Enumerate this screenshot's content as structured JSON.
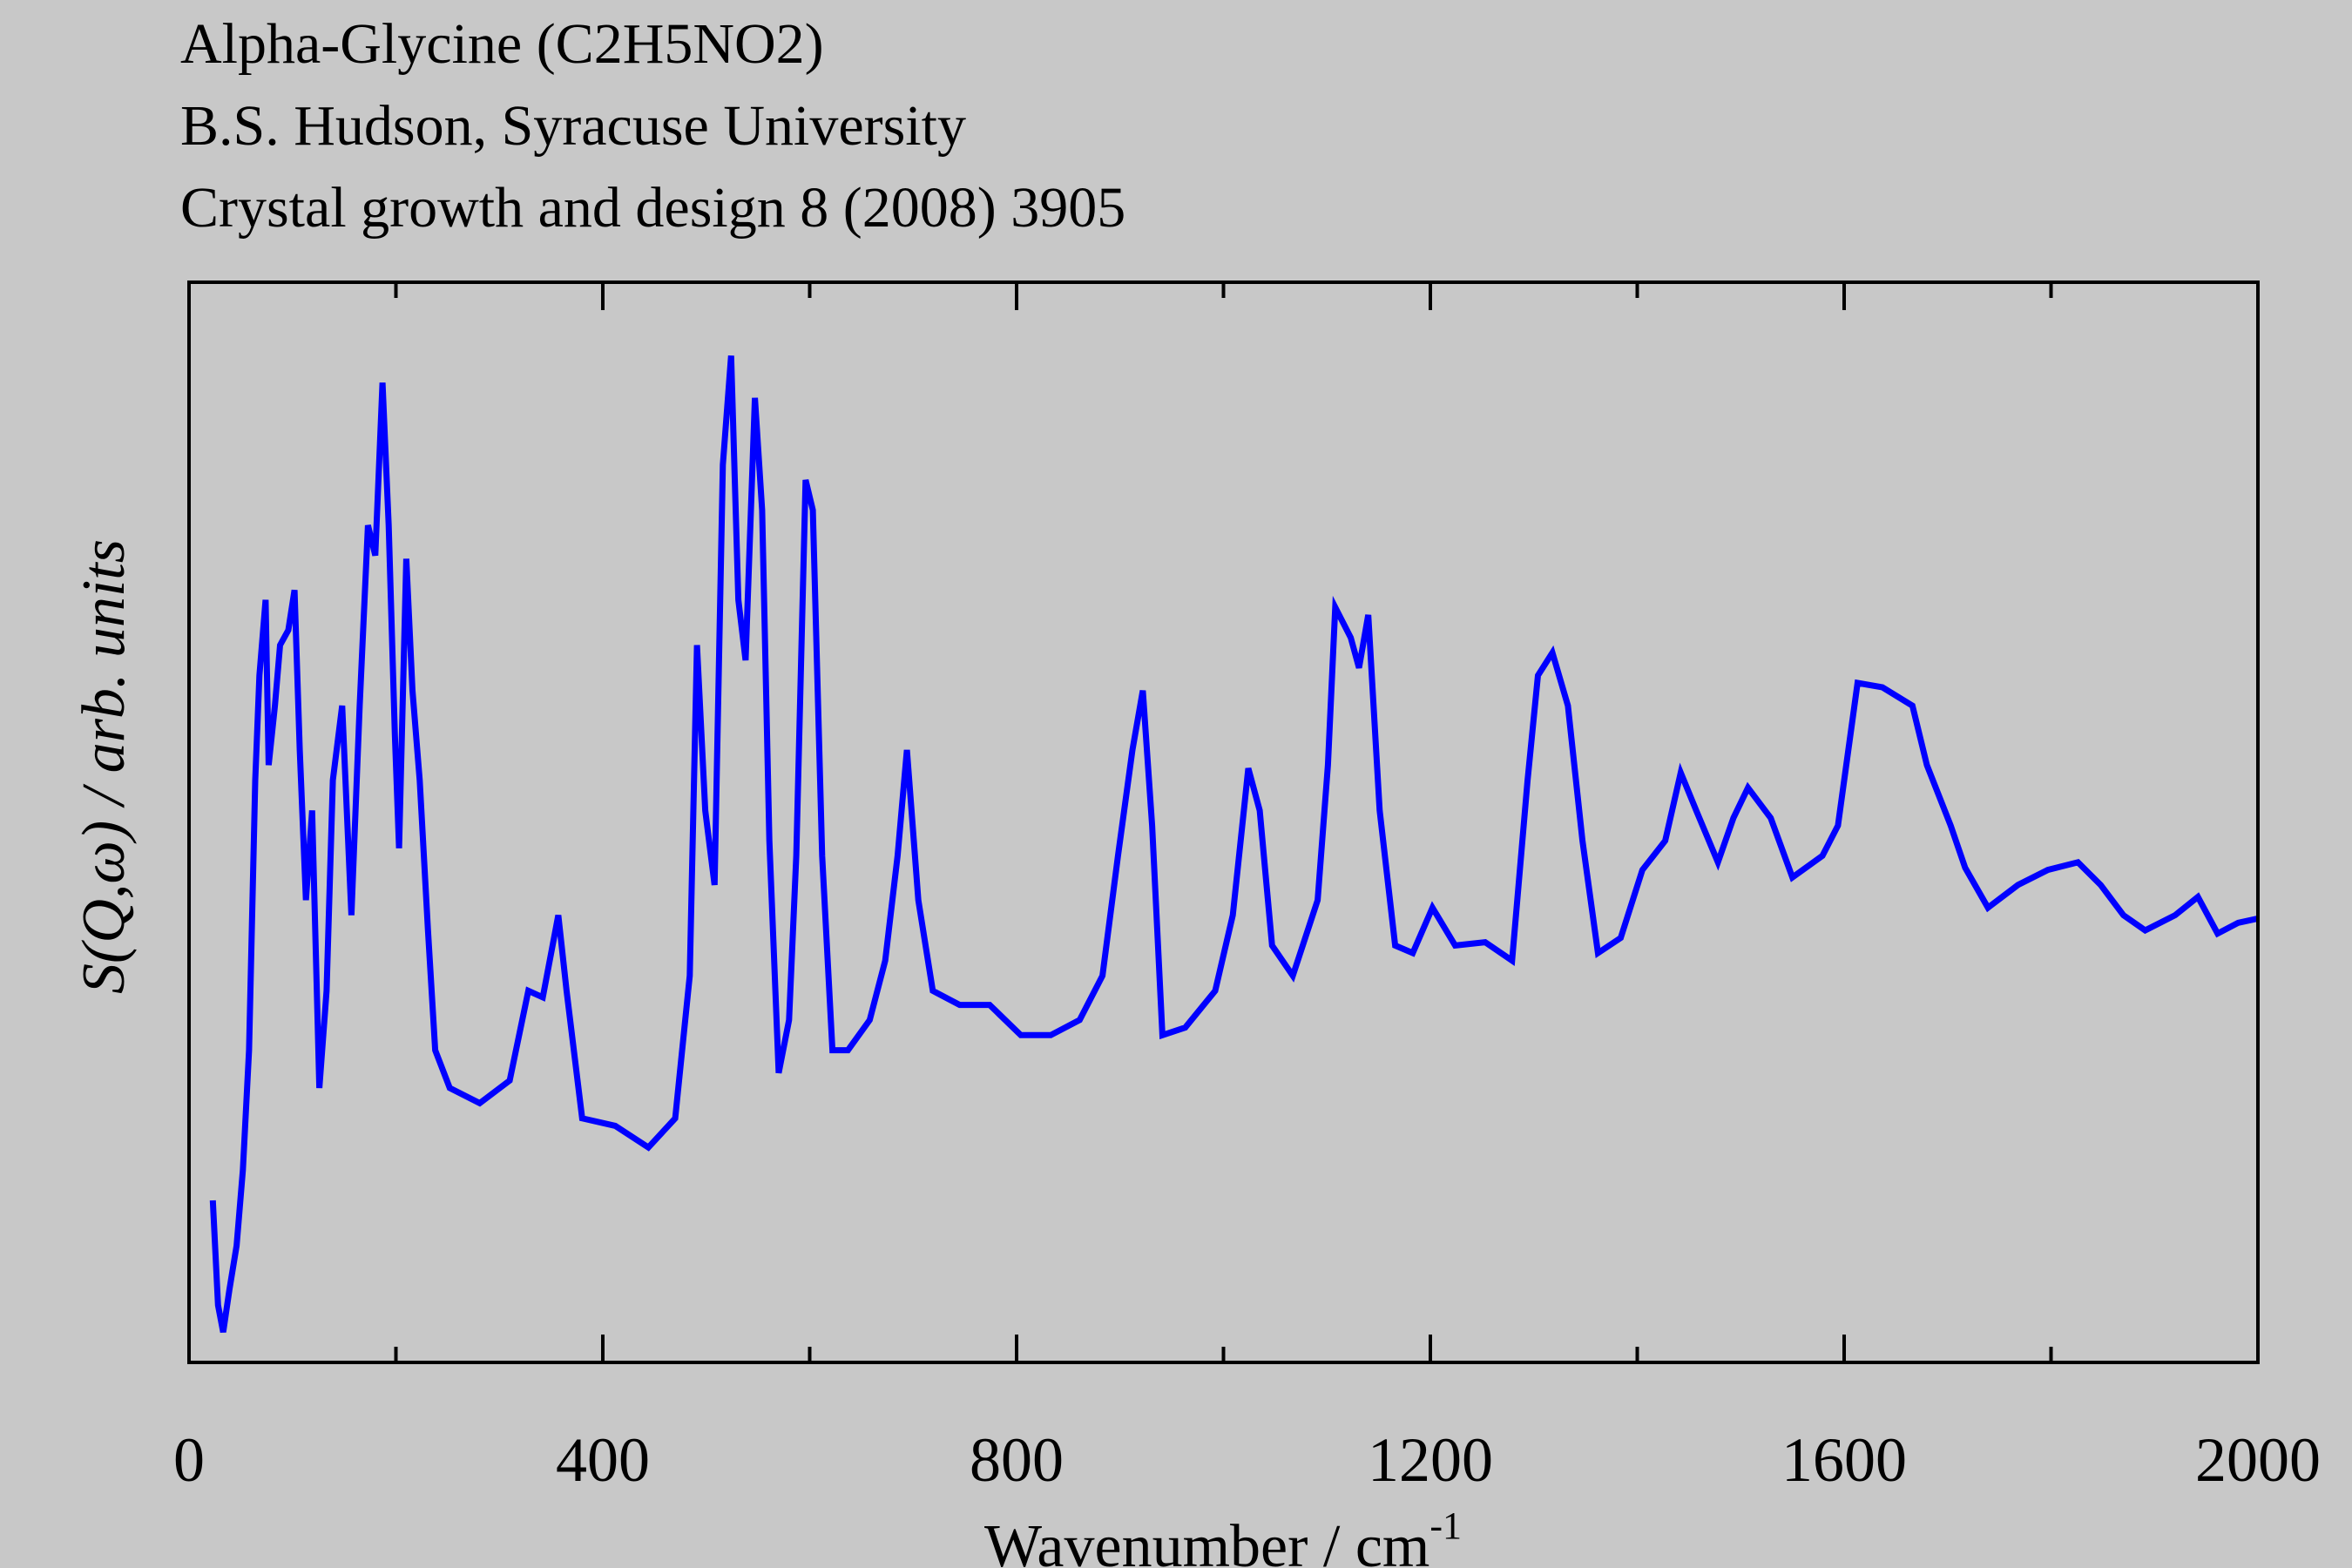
{
  "chart_data": {
    "type": "line",
    "title": "Alpha-Glycine (C2H5NO2)",
    "subtitle": [
      "B.S. Hudson, Syracuse University",
      "Crystal growth and design 8 (2008) 3905"
    ],
    "xlabel": "Wavenumber / cm",
    "xlabel_superscript": "-1",
    "ylabel": "S(Q,ω) / arb. units",
    "xlim": [
      0,
      2000
    ],
    "xticks": [
      0,
      400,
      800,
      1200,
      1600,
      2000
    ],
    "xminorticks": [
      200,
      600,
      1000,
      1400,
      1800
    ],
    "ylim": [
      0,
      100
    ],
    "series": [
      {
        "name": "Alpha-Glycine",
        "color": "#0000ff",
        "x": [
          23,
          28,
          33,
          39,
          46,
          52,
          58,
          64,
          68,
          74,
          77,
          83,
          88,
          96,
          102,
          107,
          113,
          119,
          126,
          133,
          139,
          148,
          157,
          165,
          173,
          180,
          187,
          193,
          199,
          203,
          210,
          216,
          223,
          231,
          238,
          252,
          281,
          310,
          328,
          342,
          357,
          365,
          380,
          412,
          444,
          470,
          484,
          491,
          499,
          508,
          516,
          524,
          531,
          538,
          547,
          554,
          561,
          570,
          580,
          587,
          596,
          603,
          612,
          622,
          637,
          658,
          673,
          685,
          694,
          705,
          719,
          745,
          774,
          804,
          833,
          861,
          883,
          898,
          912,
          922,
          931,
          941,
          963,
          992,
          1009,
          1024,
          1035,
          1047,
          1067,
          1091,
          1101,
          1108,
          1123,
          1131,
          1140,
          1151,
          1166,
          1183,
          1202,
          1224,
          1253,
          1279,
          1294,
          1304,
          1318,
          1333,
          1347,
          1362,
          1384,
          1405,
          1427,
          1442,
          1457,
          1478,
          1493,
          1507,
          1529,
          1550,
          1579,
          1594,
          1613,
          1637,
          1666,
          1680,
          1703,
          1717,
          1739,
          1768,
          1797,
          1826,
          1848,
          1870,
          1891,
          1920,
          1942,
          1961,
          1981,
          2000
        ],
        "values": [
          15,
          5.3,
          2.8,
          6.7,
          10.8,
          17.8,
          28.9,
          53.9,
          63.6,
          70.6,
          55.3,
          60.8,
          66.4,
          67.8,
          71.5,
          56.7,
          42.8,
          51.1,
          25.4,
          34.4,
          53.9,
          60.8,
          41.4,
          60.8,
          77.5,
          74.7,
          90.7,
          77.5,
          58.1,
          47.6,
          74.4,
          62.2,
          53.9,
          40,
          28.9,
          25.4,
          24,
          26.1,
          34.4,
          33.8,
          41.4,
          34.4,
          22.6,
          21.9,
          19.9,
          22.6,
          35.8,
          66.4,
          51.1,
          44.2,
          83.1,
          93.2,
          70.6,
          65,
          89.3,
          78.9,
          48.3,
          26.8,
          31.7,
          46.9,
          81.7,
          78.9,
          46.9,
          28.9,
          28.9,
          31.7,
          37.2,
          46.9,
          56.7,
          42.8,
          34.4,
          33.1,
          33.1,
          30.3,
          30.3,
          31.7,
          35.8,
          46.9,
          56.7,
          62.2,
          49.7,
          30.3,
          31,
          34.4,
          41.4,
          55,
          51.1,
          38.6,
          35.8,
          42.8,
          55.3,
          69.9,
          67.1,
          64.3,
          69.2,
          51.1,
          38.6,
          37.9,
          42.1,
          38.6,
          38.9,
          37.2,
          53.9,
          63.6,
          65.7,
          60.8,
          48.3,
          37.9,
          39.3,
          45.6,
          48.3,
          54.6,
          51.1,
          46.3,
          50.4,
          53.2,
          50.4,
          44.9,
          46.9,
          49.7,
          62.9,
          62.5,
          60.8,
          55.3,
          49.7,
          45.8,
          42.1,
          44.2,
          45.6,
          46.3,
          44.2,
          41.4,
          40,
          41.4,
          43.1,
          39.7,
          40.7,
          41.1
        ]
      }
    ]
  }
}
